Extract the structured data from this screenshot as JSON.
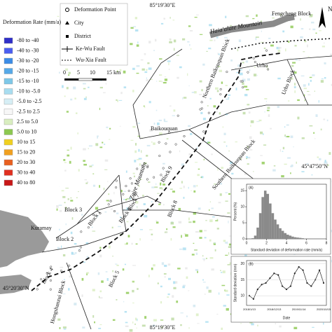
{
  "legend": {
    "title": "Deformation Rate (mm/a)",
    "items": [
      {
        "label": "-80 to -40",
        "color": "#2f2fc8"
      },
      {
        "label": "-40 to -30",
        "color": "#4a5ef0"
      },
      {
        "label": "-30 to -20",
        "color": "#3c8ce6"
      },
      {
        "label": "-20 to -15",
        "color": "#56a9e8"
      },
      {
        "label": "-15 to -10",
        "color": "#7ec8e8"
      },
      {
        "label": "-10 to -5.0",
        "color": "#a8ddf0"
      },
      {
        "label": "-5.0 to -2.5",
        "color": "#d6eef5"
      },
      {
        "label": "-2.5 to 2.5",
        "color": "#f7f7f7"
      },
      {
        "label": "2.5 to 5.0",
        "color": "#d9eec0"
      },
      {
        "label": "5.0 to 10",
        "color": "#8cc850"
      },
      {
        "label": "10 to 15",
        "color": "#f0d020"
      },
      {
        "label": "15 to 20",
        "color": "#f0a020"
      },
      {
        "label": "20 to 30",
        "color": "#e86020"
      },
      {
        "label": "30 to 40",
        "color": "#e03020"
      },
      {
        "label": "40 to 80",
        "color": "#c81818"
      }
    ]
  },
  "symbols": {
    "deformation_point": "Deformation Point",
    "city": "City",
    "district": "District",
    "kewu_fault": "Ke-Wu Fault",
    "wuxia_fault": "Wu-Xia Fault"
  },
  "scale": [
    "0",
    "5",
    "10",
    "15 km"
  ],
  "coordinates": {
    "top": "85°19'30\"E",
    "bottom": "85°19'30\"E",
    "right": "45°47'50\"N",
    "left": "45°20'30\"N"
  },
  "north": "N",
  "labels": {
    "haiaalate": "Haia'alate Mountain",
    "fengcheng": "Fengcheng Block",
    "urho": "Urho",
    "urho_block": "Urho Block",
    "northern": "Northern Baikouquan Block",
    "baikouquan": "Baikouquan",
    "southern": "Southern Baikouquan Block",
    "zaire": "Zaire Mountain",
    "block9": "Block 9",
    "block8": "Block 8",
    "block7": "Block 7",
    "block6": "Block 6",
    "block5": "Block 5",
    "block4": "Block 4",
    "block3": "Block 3",
    "block2": "Block 2",
    "block1": "Block 1",
    "kuramay": "Kuramay",
    "hongshanzui": "Hongshanzui Block"
  },
  "chart_data": [
    {
      "type": "histogram",
      "title": "(A)",
      "x_label": "Standard deviation of deformation rate (mm/a)",
      "y_label": "Percent (%)",
      "color": "#8a8a8a",
      "bins": [
        0.5,
        0.75,
        1.0,
        1.25,
        1.5,
        1.75,
        2.0,
        2.25,
        2.5,
        2.75,
        3.0,
        3.25,
        3.5,
        3.75,
        4.0,
        4.25,
        4.5,
        4.75,
        5.0,
        5.25,
        5.5,
        5.75,
        6.0
      ],
      "values": [
        0.2,
        1,
        3.5,
        8,
        13,
        15,
        14,
        11,
        8,
        6,
        4.5,
        3.3,
        2.5,
        1.8,
        1.3,
        1,
        0.7,
        0.5,
        0.4,
        0.3,
        0.2,
        0.1
      ],
      "xlim": [
        0,
        8
      ],
      "xticks": [
        0,
        2,
        4,
        6,
        8
      ],
      "ylim": [
        0,
        17
      ],
      "yticks": [
        0,
        5,
        10,
        15
      ]
    },
    {
      "type": "line",
      "title": "(B)",
      "x_label": "Date",
      "y_label": "Standard deviation (mm)",
      "color": "#222222",
      "categories": [
        "2018/1/13",
        null,
        null,
        null,
        null,
        null,
        "2018/12/13",
        null,
        null,
        null,
        null,
        null,
        "2019/11/14",
        null,
        null,
        null,
        null,
        null,
        "2020/10/15"
      ],
      "values": [
        10,
        9,
        12,
        13.5,
        14,
        15.5,
        17,
        16.5,
        13,
        12,
        13,
        17,
        19,
        18,
        14,
        13,
        15,
        18,
        14
      ],
      "ylim": [
        7,
        21
      ],
      "yticks": [
        10,
        15,
        20
      ]
    }
  ]
}
